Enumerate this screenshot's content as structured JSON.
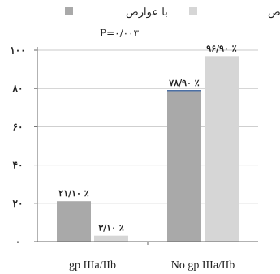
{
  "chart_data": {
    "type": "bar",
    "categories": [
      "gp IIIa/IIb",
      "No gp IIIa/IIb"
    ],
    "series": [
      {
        "name": "با عوارض",
        "color": "#a9a9a9",
        "values": [
          21.1,
          78.9
        ]
      },
      {
        "name": "بدون عوارض",
        "color": "#d6d6d6",
        "values": [
          3.1,
          96.9
        ]
      }
    ],
    "data_labels": [
      [
        "۲۱/۱۰ ٪",
        "۳/۱۰ ٪"
      ],
      [
        "۷۸/۹۰ ٪",
        "۹۶/۹۰ ٪"
      ]
    ],
    "annotation": "P=۰/۰۰۳",
    "ylim": [
      0,
      100
    ],
    "yticks": [
      0,
      20,
      40,
      60,
      80,
      100
    ],
    "ytick_labels": [
      "۰",
      "۲۰",
      "۴۰",
      "۶۰",
      "۸۰",
      "۱۰۰"
    ],
    "grid": true,
    "legend_position": "top"
  }
}
